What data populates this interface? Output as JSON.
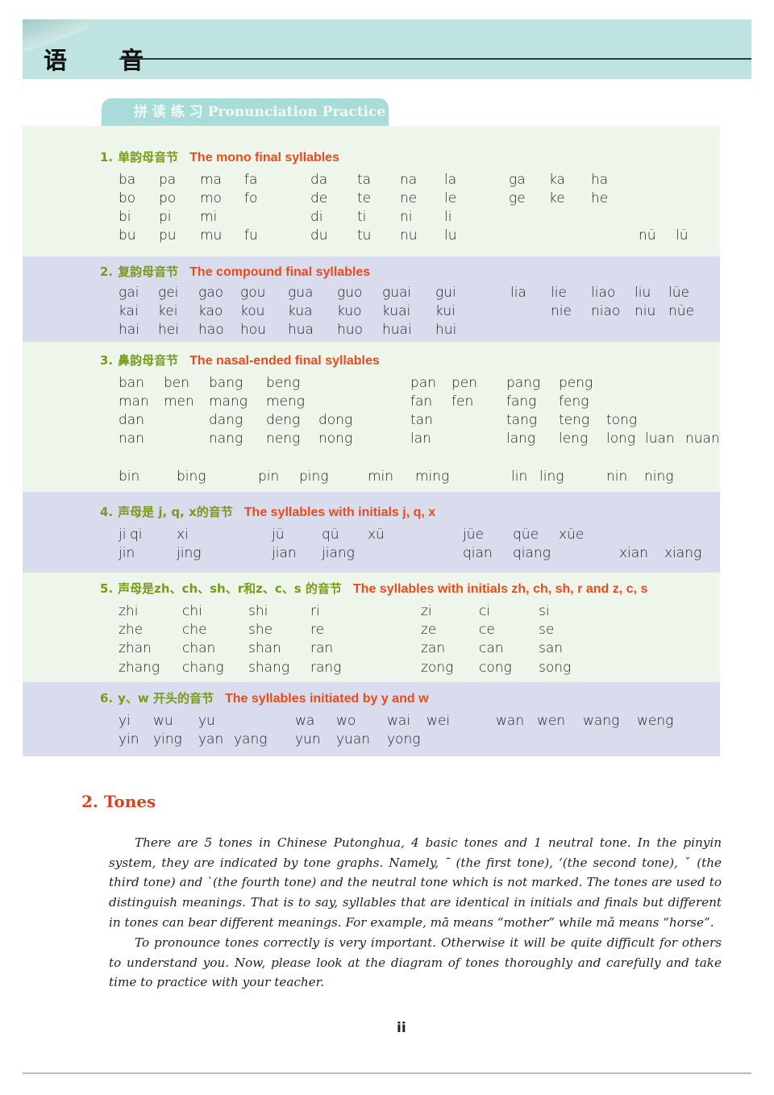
{
  "header": {
    "title": "语 音"
  },
  "practice_tab": {
    "label": "拼 读 练 习  Pronunciation Practice"
  },
  "sections": [
    {
      "num": "1.",
      "cn": "单韵母音节",
      "en": "The mono final syllables",
      "rows": [
        [
          "ba",
          "pa",
          "ma",
          "fa",
          "da",
          "ta",
          "na",
          "la",
          "ga",
          "ka",
          "ha",
          "",
          ""
        ],
        [
          "bo",
          "po",
          "mo",
          "fo",
          "de",
          "te",
          "ne",
          "le",
          "ge",
          "ke",
          "he",
          "",
          ""
        ],
        [
          "bi",
          "pi",
          "mi",
          "",
          "di",
          "ti",
          "ni",
          "li",
          "",
          "",
          "",
          "",
          ""
        ],
        [
          "bu",
          "pu",
          "mu",
          "fu",
          "du",
          "tu",
          "nu",
          "lu",
          "",
          "",
          "",
          "nü",
          "lü"
        ]
      ]
    },
    {
      "num": "2.",
      "cn": "复韵母音节",
      "en": "The compound final syllables",
      "rows": [
        [
          "gai",
          "gei",
          "gao",
          "gou",
          "gua",
          "guo",
          "guai",
          "gui",
          "lia",
          "lie",
          "liao",
          "liu",
          "lüe"
        ],
        [
          "kai",
          "kei",
          "kao",
          "kou",
          "kua",
          "kuo",
          "kuai",
          "kui",
          "",
          "nie",
          "niao",
          "niu",
          "nüe"
        ],
        [
          "hai",
          "hei",
          "hao",
          "hou",
          "hua",
          "huo",
          "huai",
          "hui",
          "",
          "",
          "",
          "",
          ""
        ]
      ]
    },
    {
      "num": "3.",
      "cn": "鼻韵母音节",
      "en": "The nasal-ended final syllables",
      "rows": [
        [
          "ban",
          "ben",
          "bang",
          "beng",
          "",
          "pan",
          "pen",
          "pang",
          "peng",
          "",
          "",
          ""
        ],
        [
          "man",
          "men",
          "mang",
          "meng",
          "",
          "fan",
          "fen",
          "fang",
          "feng",
          "",
          "",
          ""
        ],
        [
          "dan",
          "",
          "dang",
          "deng",
          "dong",
          "tan",
          "",
          "tang",
          "teng",
          "tong",
          "",
          ""
        ],
        [
          "nan",
          "",
          "nang",
          "neng",
          "nong",
          "lan",
          "",
          "lang",
          "leng",
          "long",
          "luan",
          "nuan"
        ]
      ],
      "extra_row": [
        "bin",
        "bing",
        "pin",
        "ping",
        "min",
        "ming",
        "lin",
        "ling",
        "nin",
        "ning"
      ]
    },
    {
      "num": "4.",
      "cn": "声母是 j, q, x的音节",
      "en": "The syllables with initials j, q, x",
      "rows": [
        [
          "ji",
          "qi",
          "xi",
          "jü",
          "qü",
          "xü",
          "jüe",
          "qüe",
          "xüe",
          "",
          ""
        ],
        [
          "jin",
          "",
          "jing",
          "jian",
          "jiang",
          "",
          "qian",
          "qiang",
          "",
          "xian",
          "xiang"
        ]
      ]
    },
    {
      "num": "5.",
      "cn": "声母是zh、ch、sh、r和z、c、s 的音节",
      "en": "The syllables with initials zh, ch, sh, r and z, c, s",
      "rows": [
        [
          "zhi",
          "chi",
          "shi",
          "ri",
          "zi",
          "ci",
          "si"
        ],
        [
          "zhe",
          "che",
          "she",
          "re",
          "ze",
          "ce",
          "se"
        ],
        [
          "zhan",
          "chan",
          "shan",
          "ran",
          "zan",
          "can",
          "san"
        ],
        [
          "zhang",
          "chang",
          "shang",
          "rang",
          "zong",
          "cong",
          "song"
        ]
      ]
    },
    {
      "num": "6.",
      "cn": "y、w 开头的音节",
      "en": "The syllables initiated by y and w",
      "rows": [
        [
          "yi",
          "wu",
          "yu",
          "",
          "wa",
          "wo",
          "wai",
          "wei",
          "wan",
          "wen",
          "wang",
          "weng"
        ],
        [
          "yin",
          "ying",
          "yan",
          "yang",
          "yun",
          "yuan",
          "yong",
          "",
          "",
          "",
          "",
          ""
        ]
      ]
    }
  ],
  "tones": {
    "heading": "2.  Tones",
    "paragraph1": "There are 5 tones in Chinese Putonghua, 4 basic tones and 1 neutral tone. In the pinyin system, they are indicated by tone graphs. Namely, ˉ (the first tone), ‘(the second tone), ˇ (the third tone) and ˋ(the fourth tone) and the neutral tone which is not marked. The tones are used to distinguish meanings. That is to say, syllables that are identical in initials and finals but different in tones can bear different meanings. For example, mā means “mother” while mǎ means “horse”.",
    "paragraph2": "To pronounce tones correctly is very important. Otherwise it will be quite difficult for others to understand you. Now, please look at the diagram of tones thoroughly and carefully and take time to practice with your teacher."
  },
  "page_number": "ii",
  "colors": {
    "header_teal": "#bfe3e0",
    "section_green": "#7a9a1c",
    "section_red": "#ea4a1c",
    "band_lavender": "#d9dcec",
    "band_green": "#eef6ec"
  }
}
